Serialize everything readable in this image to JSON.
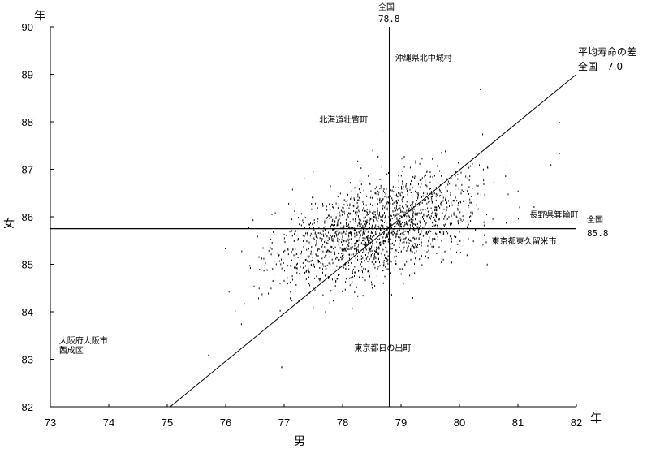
{
  "chart_data": {
    "type": "scatter",
    "xlabel": "男",
    "ylabel": "女",
    "x_unit": "年",
    "y_unit": "年",
    "xlim": [
      73,
      82
    ],
    "ylim": [
      82,
      90
    ],
    "x_ticks": [
      "73",
      "74",
      "75",
      "76",
      "77",
      "78",
      "79",
      "80",
      "81",
      "82"
    ],
    "y_ticks": [
      "82",
      "83",
      "84",
      "85",
      "86",
      "87",
      "88",
      "89",
      "90"
    ],
    "grid": false,
    "reference_lines": {
      "vertical": {
        "label": "全国",
        "value_label": "78.8",
        "x": 78.8
      },
      "horizontal": {
        "label": "全国",
        "value_label": "85.8",
        "y": 85.75
      }
    },
    "diagonal": {
      "label_line1": "平均寿命の差",
      "label_line2": "全国　7.0",
      "from": [
        75.05,
        82
      ],
      "to": [
        82,
        89
      ]
    },
    "annotations": [
      {
        "text": "沖縄県北中城村",
        "x": 78.9,
        "y": 89.35
      },
      {
        "text": "北海道壮瞥町",
        "x": 77.6,
        "y": 88.05
      },
      {
        "text": "長野県箕輪町",
        "x": 81.2,
        "y": 86.05
      },
      {
        "text": "東京都東久留米市",
        "x": 80.55,
        "y": 85.5
      },
      {
        "text": "大阪府大阪市",
        "x": 73.15,
        "y": 83.4
      },
      {
        "text": "西成区",
        "x": 73.15,
        "y": 83.2
      },
      {
        "text": "東京都日の出町",
        "x": 78.2,
        "y": 83.25
      }
    ],
    "outlier_points": [
      {
        "x": 78.95,
        "y": 89.38
      },
      {
        "x": 77.7,
        "y": 88.0
      },
      {
        "x": 81.25,
        "y": 86.0
      },
      {
        "x": 80.6,
        "y": 85.55
      },
      {
        "x": 73.18,
        "y": 83.28
      },
      {
        "x": 78.65,
        "y": 83.25
      },
      {
        "x": 76.95,
        "y": 82.85
      },
      {
        "x": 75.7,
        "y": 83.1
      },
      {
        "x": 81.7,
        "y": 88.0
      },
      {
        "x": 80.35,
        "y": 88.7
      },
      {
        "x": 81.7,
        "y": 87.35
      }
    ],
    "cloud": {
      "n": 1750,
      "center": [
        78.6,
        85.75
      ],
      "sd": [
        0.85,
        0.6
      ],
      "correlation": 0.5,
      "seed": 20
    }
  }
}
